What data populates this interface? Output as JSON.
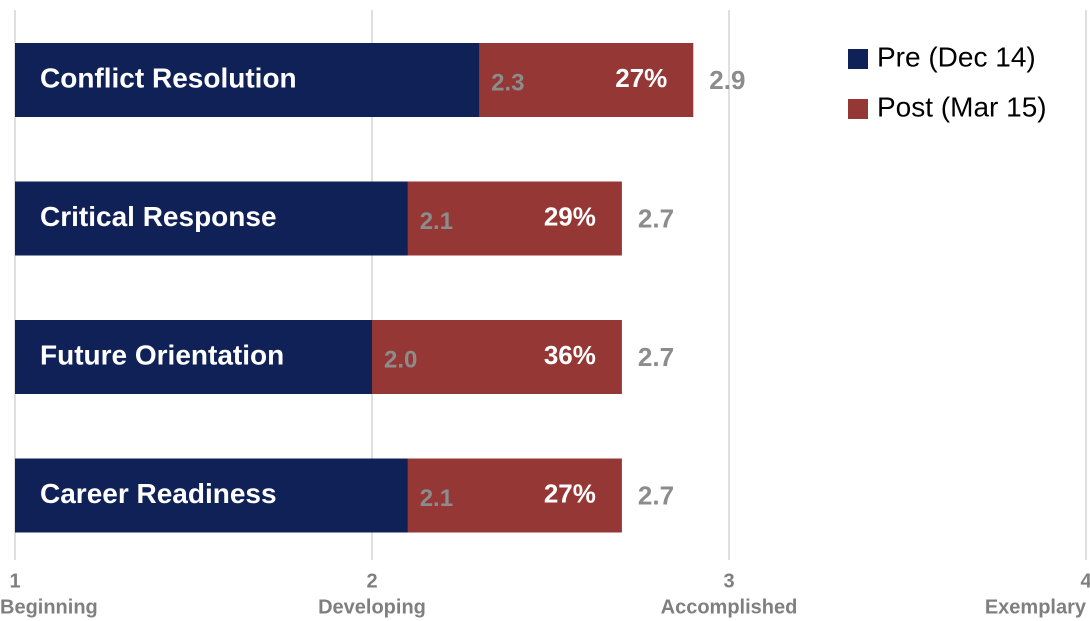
{
  "chart_data": {
    "type": "bar",
    "categories": [
      "Conflict Resolution",
      "Critical Response",
      "Future Orientation",
      "Career Readiness"
    ],
    "series": [
      {
        "name": "Pre (Dec 14)",
        "color": "#0f2157",
        "values": [
          2.3,
          2.1,
          2.0,
          2.1
        ],
        "value_labels": [
          "2.3",
          "2.1",
          "2.0",
          "2.1"
        ]
      },
      {
        "name": "Post (Mar 15)",
        "color": "#953735",
        "values": [
          2.9,
          2.7,
          2.7,
          2.7
        ],
        "value_labels": [
          "2.9",
          "2.7",
          "2.7",
          "2.7"
        ]
      }
    ],
    "change_labels": [
      "27%",
      "29%",
      "36%",
      "27%"
    ],
    "xlim": [
      1,
      4
    ],
    "xticks": [
      1,
      2,
      3,
      4
    ],
    "xtick_names": [
      "Beginning",
      "Developing",
      "Accomplished",
      "Exemplary"
    ],
    "grid": true,
    "legend": "top-right"
  }
}
